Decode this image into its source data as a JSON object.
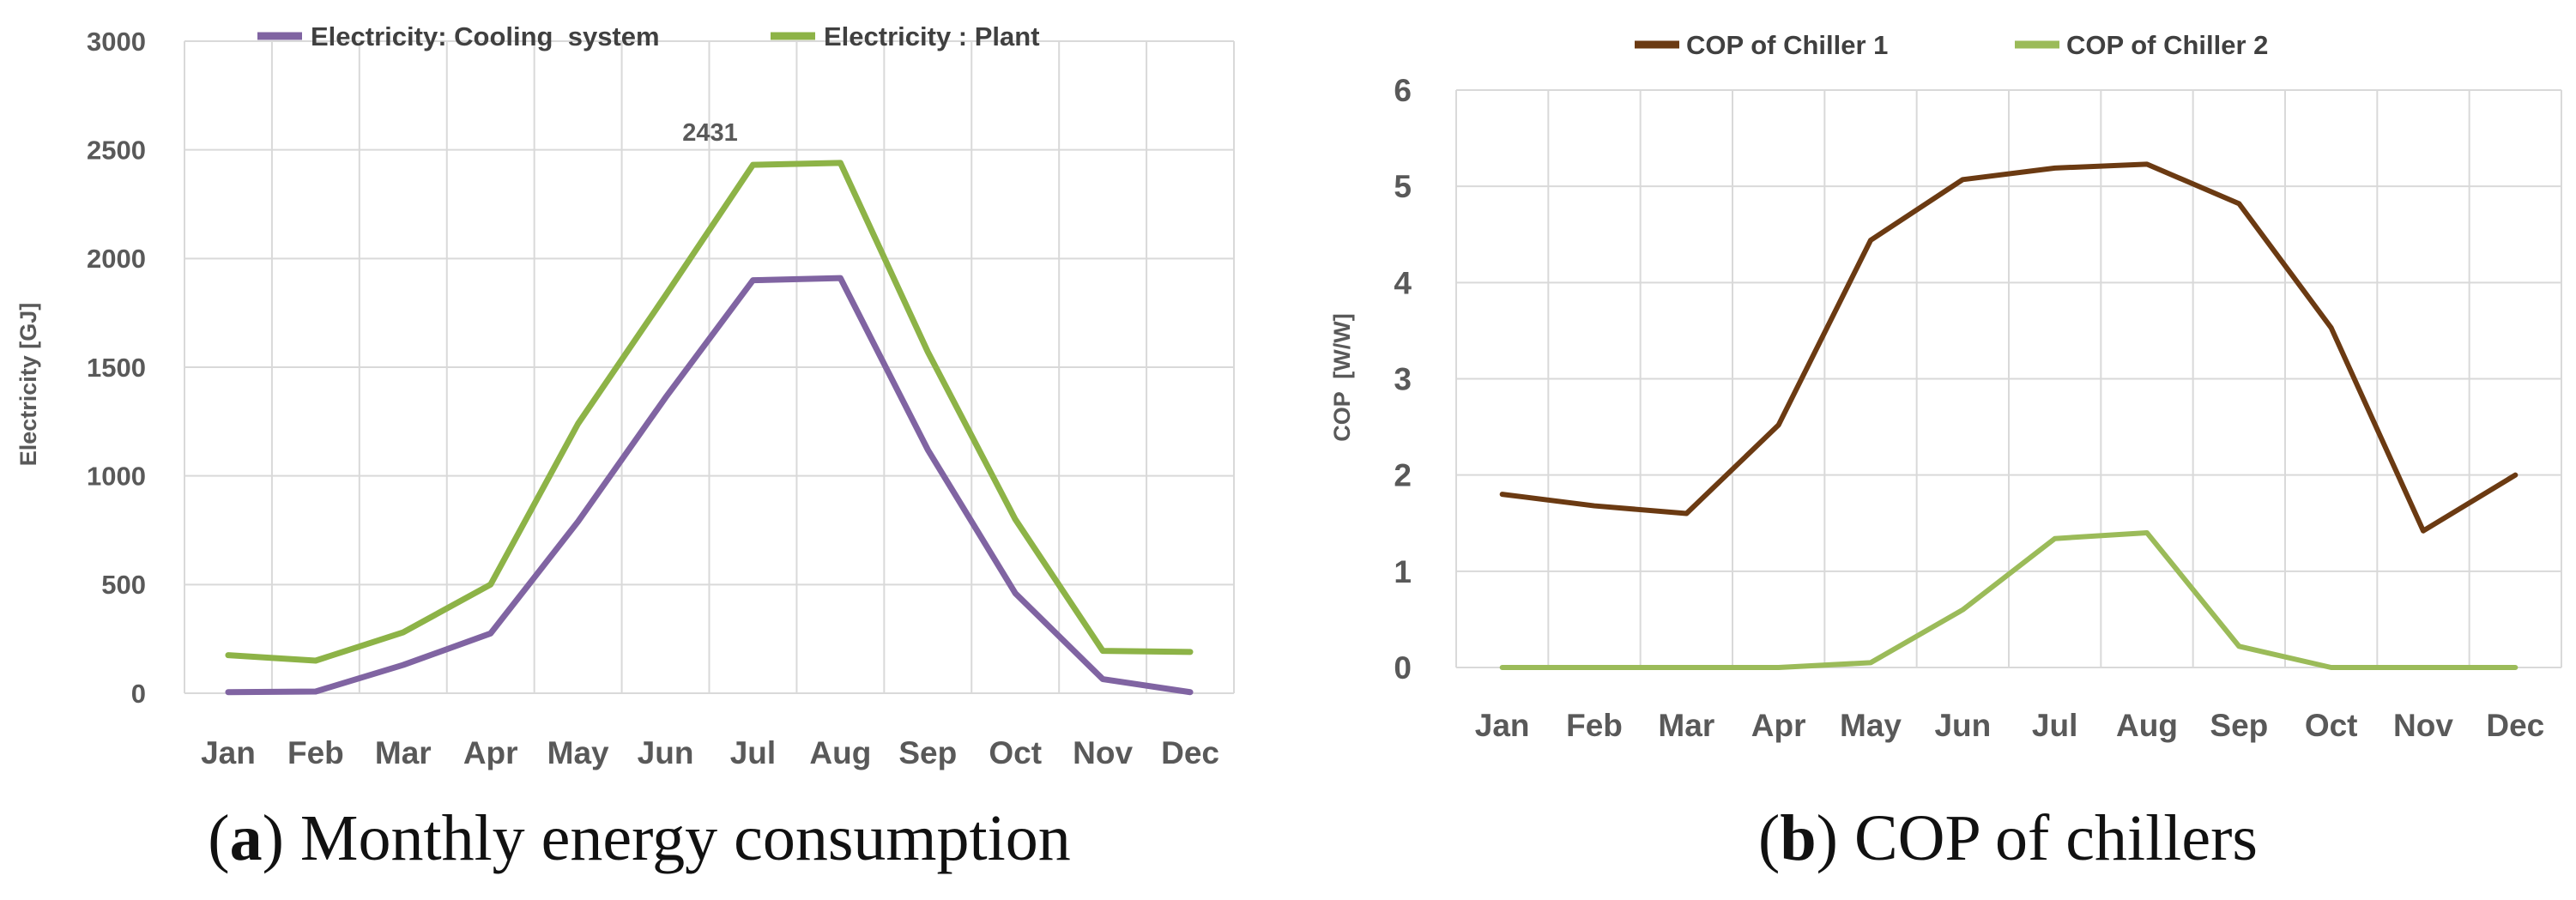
{
  "chart_data": [
    {
      "type": "line",
      "panel_label": "a",
      "caption": " Monthly energy consumption",
      "xlabel": "",
      "ylabel": "Electricity  [GJ]",
      "ylim": [
        0,
        3000
      ],
      "yticks": [
        "0",
        "500",
        "1000",
        "1500",
        "2000",
        "2500",
        "3000"
      ],
      "categories": [
        "Jan",
        "Feb",
        "Mar",
        "Apr",
        "May",
        "Jun",
        "Jul",
        "Aug",
        "Sep",
        "Oct",
        "Nov",
        "Dec"
      ],
      "grid": true,
      "legend_position": "top",
      "series": [
        {
          "name": "Electricity: Cooling  system",
          "color": "#8064a2",
          "values": [
            5,
            8,
            130,
            275,
            790,
            1360,
            1900,
            1910,
            1120,
            460,
            65,
            5
          ]
        },
        {
          "name": "Electricity : Plant",
          "color": "#8db347",
          "values": [
            175,
            150,
            280,
            500,
            1240,
            1830,
            2431,
            2440,
            1570,
            800,
            195,
            190
          ]
        }
      ],
      "annotations": [
        {
          "text": "2431",
          "series": 1,
          "index": 6
        }
      ]
    },
    {
      "type": "line",
      "panel_label": "b",
      "caption": " COP of chillers",
      "xlabel": "",
      "ylabel": "COP  [W/W]",
      "ylim": [
        0,
        6
      ],
      "yticks": [
        "0",
        "1",
        "2",
        "3",
        "4",
        "5",
        "6"
      ],
      "categories": [
        "Jan",
        "Feb",
        "Mar",
        "Apr",
        "May",
        "Jun",
        "Jul",
        "Aug",
        "Sep",
        "Oct",
        "Nov",
        "Dec"
      ],
      "grid": true,
      "legend_position": "top",
      "series": [
        {
          "name": "COP of Chiller 1",
          "color": "#6b3a12",
          "values": [
            1.8,
            1.68,
            1.6,
            2.52,
            4.44,
            5.07,
            5.19,
            5.23,
            4.82,
            3.53,
            1.42,
            2.0
          ]
        },
        {
          "name": "COP of Chiller 2",
          "color": "#9bbb59",
          "values": [
            0,
            0,
            0,
            0,
            0.05,
            0.6,
            1.34,
            1.4,
            0.22,
            0,
            0,
            0
          ]
        }
      ],
      "annotations": []
    }
  ]
}
